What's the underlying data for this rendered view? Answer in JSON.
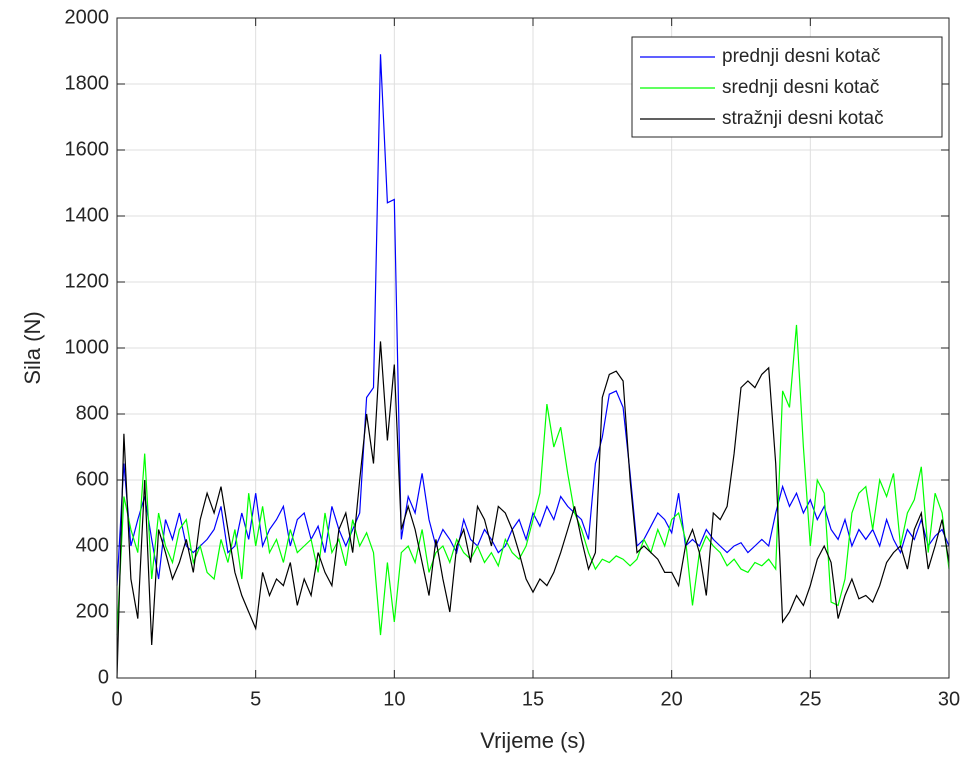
{
  "chart_data": {
    "type": "line",
    "xlabel": "Vrijeme (s)",
    "ylabel": "Sila (N)",
    "x": [
      0,
      0.25,
      0.5,
      0.75,
      1,
      1.25,
      1.5,
      1.75,
      2,
      2.25,
      2.5,
      2.75,
      3,
      3.25,
      3.5,
      3.75,
      4,
      4.25,
      4.5,
      4.75,
      5,
      5.25,
      5.5,
      5.75,
      6,
      6.25,
      6.5,
      6.75,
      7,
      7.25,
      7.5,
      7.75,
      8,
      8.25,
      8.5,
      8.75,
      9,
      9.25,
      9.5,
      9.75,
      10,
      10.25,
      10.5,
      10.75,
      11,
      11.25,
      11.5,
      11.75,
      12,
      12.25,
      12.5,
      12.75,
      13,
      13.25,
      13.5,
      13.75,
      14,
      14.25,
      14.5,
      14.75,
      15,
      15.25,
      15.5,
      15.75,
      16,
      16.25,
      16.5,
      16.75,
      17,
      17.25,
      17.5,
      17.75,
      18,
      18.25,
      18.5,
      18.75,
      19,
      19.25,
      19.5,
      19.75,
      20,
      20.25,
      20.5,
      20.75,
      21,
      21.25,
      21.5,
      21.75,
      22,
      22.25,
      22.5,
      22.75,
      23,
      23.25,
      23.5,
      23.75,
      24,
      24.25,
      24.5,
      24.75,
      25,
      25.25,
      25.5,
      25.75,
      26,
      26.25,
      26.5,
      26.75,
      27,
      27.25,
      27.5,
      27.75,
      28,
      28.25,
      28.5,
      28.75,
      29,
      29.25,
      29.5,
      29.75,
      30
    ],
    "series": [
      {
        "name": "prednji desni kotač",
        "color": "#0000ff",
        "values": [
          280,
          650,
          400,
          480,
          550,
          420,
          300,
          480,
          420,
          500,
          400,
          380,
          400,
          420,
          450,
          520,
          380,
          400,
          500,
          420,
          560,
          400,
          450,
          480,
          520,
          400,
          480,
          500,
          420,
          460,
          380,
          520,
          450,
          400,
          450,
          500,
          850,
          880,
          1890,
          1440,
          1450,
          420,
          550,
          500,
          620,
          480,
          400,
          450,
          420,
          380,
          480,
          420,
          400,
          450,
          420,
          380,
          400,
          450,
          480,
          420,
          500,
          460,
          520,
          480,
          550,
          520,
          500,
          480,
          420,
          650,
          730,
          860,
          870,
          820,
          620,
          400,
          420,
          460,
          500,
          480,
          440,
          560,
          400,
          420,
          400,
          450,
          420,
          400,
          380,
          400,
          410,
          380,
          400,
          420,
          400,
          500,
          580,
          520,
          560,
          500,
          540,
          480,
          520,
          450,
          420,
          480,
          400,
          450,
          420,
          450,
          400,
          480,
          420,
          380,
          450,
          420,
          480,
          400,
          430,
          450,
          400
        ]
      },
      {
        "name": "srednji desni kotač",
        "color": "#00ff00",
        "values": [
          130,
          550,
          450,
          380,
          680,
          300,
          500,
          400,
          350,
          450,
          480,
          350,
          400,
          320,
          300,
          420,
          350,
          450,
          300,
          560,
          400,
          520,
          380,
          420,
          350,
          450,
          380,
          400,
          420,
          320,
          500,
          380,
          420,
          340,
          480,
          400,
          440,
          380,
          130,
          350,
          170,
          380,
          400,
          350,
          450,
          320,
          380,
          400,
          350,
          420,
          380,
          360,
          400,
          350,
          380,
          340,
          420,
          380,
          360,
          400,
          480,
          560,
          830,
          700,
          760,
          620,
          500,
          450,
          380,
          330,
          360,
          350,
          370,
          360,
          340,
          360,
          420,
          380,
          450,
          400,
          480,
          500,
          420,
          220,
          380,
          430,
          400,
          380,
          340,
          360,
          330,
          320,
          350,
          340,
          360,
          330,
          870,
          820,
          1070,
          700,
          400,
          600,
          560,
          230,
          220,
          300,
          500,
          560,
          580,
          450,
          600,
          550,
          620,
          400,
          500,
          540,
          640,
          380,
          560,
          500,
          330
        ]
      },
      {
        "name": "stražnji desni kotač",
        "color": "#000000",
        "values": [
          0,
          740,
          300,
          180,
          600,
          100,
          450,
          380,
          300,
          350,
          420,
          320,
          480,
          560,
          500,
          580,
          450,
          320,
          250,
          200,
          150,
          320,
          250,
          300,
          280,
          350,
          220,
          300,
          250,
          380,
          320,
          280,
          450,
          500,
          380,
          600,
          800,
          650,
          1020,
          720,
          950,
          450,
          520,
          450,
          350,
          250,
          420,
          300,
          200,
          400,
          450,
          350,
          520,
          480,
          400,
          520,
          500,
          450,
          380,
          300,
          260,
          300,
          280,
          320,
          380,
          450,
          520,
          420,
          330,
          380,
          850,
          920,
          930,
          900,
          600,
          380,
          400,
          380,
          360,
          320,
          320,
          280,
          400,
          450,
          380,
          250,
          500,
          480,
          520,
          680,
          880,
          900,
          880,
          920,
          940,
          650,
          170,
          200,
          250,
          220,
          280,
          360,
          400,
          350,
          180,
          250,
          300,
          240,
          250,
          230,
          280,
          350,
          380,
          400,
          330,
          450,
          500,
          330,
          400,
          480,
          350
        ]
      }
    ],
    "xlim": [
      0,
      30
    ],
    "xticks": [
      0,
      5,
      10,
      15,
      20,
      25,
      30
    ],
    "ylim": [
      0,
      2000
    ],
    "yticks": [
      0,
      200,
      400,
      600,
      800,
      1000,
      1200,
      1400,
      1600,
      1800,
      2000
    ],
    "grid": true,
    "legend": "northeast"
  }
}
